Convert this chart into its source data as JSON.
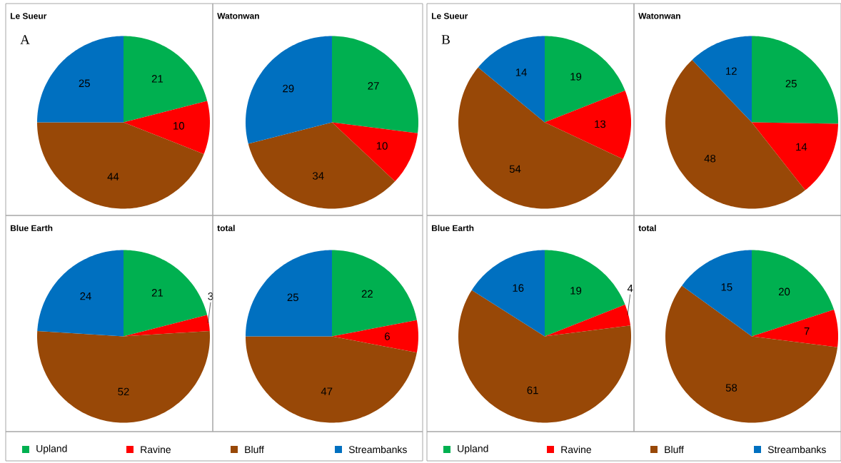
{
  "chart_data": [
    {
      "type": "pie",
      "title": "Le Sueur",
      "categories": [
        "Upland",
        "Ravine",
        "Bluff",
        "Streambanks"
      ],
      "values": [
        21,
        10,
        44,
        25
      ],
      "colors": [
        "#00b050",
        "#ff0000",
        "#984807",
        "#0070c0"
      ],
      "data_labels": true,
      "legend": "bottom",
      "annotations": [
        "A"
      ]
    },
    {
      "type": "pie",
      "title": "Watonwan",
      "categories": [
        null,
        null,
        null,
        null
      ],
      "values": [
        27,
        10,
        34,
        29
      ],
      "colors": [
        "#00b050",
        "#ff0000",
        "#984807",
        "#0070c0"
      ],
      "data_labels": true
    },
    {
      "type": "pie",
      "title": "Le Sueur",
      "categories": [
        "Upland",
        "Ravine",
        "Bluff",
        "Streambanks"
      ],
      "values": [
        19,
        13,
        54,
        14
      ],
      "colors": [
        "#00b050",
        "#ff0000",
        "#984807",
        "#0070c0"
      ],
      "data_labels": true,
      "legend": "bottom",
      "annotations": [
        "B"
      ]
    },
    {
      "type": "pie",
      "title": "Watonwan",
      "categories": [
        null,
        null,
        null,
        null
      ],
      "values": [
        25,
        14,
        48,
        12
      ],
      "colors": [
        "#00b050",
        "#ff0000",
        "#984807",
        "#0070c0"
      ],
      "data_labels": true
    },
    {
      "type": "pie",
      "title": "Blue Earth",
      "categories": [
        null,
        null,
        null,
        null
      ],
      "values": [
        21,
        3,
        52,
        24
      ],
      "colors": [
        "#00b050",
        "#ff0000",
        "#984807",
        "#0070c0"
      ],
      "data_labels": true
    },
    {
      "type": "pie",
      "title": "total",
      "categories": [
        null,
        null,
        null,
        null
      ],
      "values": [
        22,
        6,
        47,
        25
      ],
      "colors": [
        "#00b050",
        "#ff0000",
        "#984807",
        "#0070c0"
      ],
      "data_labels": true
    },
    {
      "type": "pie",
      "title": "Blue Earth",
      "categories": [
        null,
        null,
        null,
        null
      ],
      "values": [
        19,
        4,
        61,
        16
      ],
      "colors": [
        "#00b050",
        "#ff0000",
        "#984807",
        "#0070c0"
      ],
      "data_labels": true
    },
    {
      "type": "pie",
      "title": "total",
      "categories": [
        null,
        null,
        null,
        null
      ],
      "values": [
        20,
        7,
        58,
        15
      ],
      "colors": [
        "#00b050",
        "#ff0000",
        "#984807",
        "#0070c0"
      ],
      "data_labels": true
    }
  ]
}
